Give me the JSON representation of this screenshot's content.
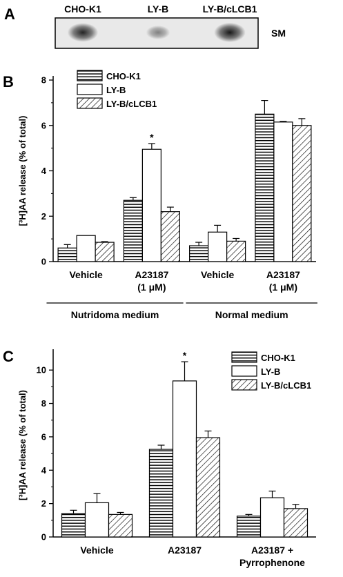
{
  "panel_a": {
    "letter": "A",
    "lanes": [
      "CHO-K1",
      "LY-B",
      "LY-B/cLCB1"
    ],
    "band_label": "SM",
    "band_intensity": [
      0.85,
      0.45,
      0.9
    ]
  },
  "chart_data": [
    {
      "panel": "B",
      "type": "bar",
      "ylabel": "[³H]AA release (% of total)",
      "ylim": [
        0,
        8
      ],
      "yticks": [
        0,
        2,
        4,
        6,
        8
      ],
      "categories": [
        "Vehicle",
        "A23187\n(1 μM)",
        "Vehicle",
        "A23187\n(1 μM)"
      ],
      "groups": [
        {
          "label": "Nutridoma medium",
          "span": [
            0,
            1
          ]
        },
        {
          "label": "Normal medium",
          "span": [
            2,
            3
          ]
        }
      ],
      "series": [
        {
          "name": "CHO-K1",
          "pattern": "horizontal",
          "values": [
            0.6,
            2.7,
            0.7,
            6.5
          ],
          "errors": [
            0.15,
            0.12,
            0.15,
            0.6
          ]
        },
        {
          "name": "LY-B",
          "pattern": "open",
          "values": [
            1.15,
            4.95,
            1.3,
            6.15
          ],
          "errors": [
            0.0,
            0.25,
            0.3,
            0.03
          ]
        },
        {
          "name": "LY-B/cLCB1",
          "pattern": "diagonal",
          "values": [
            0.85,
            2.2,
            0.9,
            6.0
          ],
          "errors": [
            0.03,
            0.2,
            0.12,
            0.3
          ]
        }
      ],
      "annotations": [
        {
          "category": 1,
          "series": 1,
          "text": "*"
        }
      ],
      "legend": "top-left"
    },
    {
      "panel": "C",
      "type": "bar",
      "ylabel": "[³H]AA release (% of total)",
      "ylim": [
        0,
        11
      ],
      "yticks": [
        0,
        2,
        4,
        6,
        8,
        10
      ],
      "categories": [
        "Vehicle",
        "A23187",
        "A23187 +\nPyrrophenone"
      ],
      "series": [
        {
          "name": "CHO-K1",
          "pattern": "horizontal",
          "values": [
            1.4,
            5.25,
            1.25
          ],
          "errors": [
            0.2,
            0.25,
            0.1
          ]
        },
        {
          "name": "LY-B",
          "pattern": "open",
          "values": [
            2.05,
            9.35,
            2.35
          ],
          "errors": [
            0.55,
            1.15,
            0.4
          ]
        },
        {
          "name": "LY-B/cLCB1",
          "pattern": "diagonal",
          "values": [
            1.35,
            5.95,
            1.7
          ],
          "errors": [
            0.12,
            0.4,
            0.25
          ]
        }
      ],
      "annotations": [
        {
          "category": 1,
          "series": 1,
          "text": "*"
        }
      ],
      "legend": "top-right"
    }
  ],
  "panel_letters": {
    "b": "B",
    "c": "C"
  }
}
